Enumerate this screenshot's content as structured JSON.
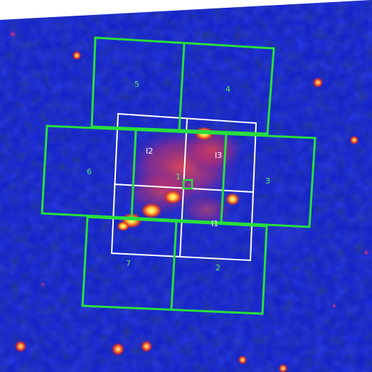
{
  "colors": {
    "green_frame": "#27e03c",
    "white_frame": "#ffffff",
    "green_label": "#58ee58",
    "white_label": "#ffffff",
    "sky_dark": "#05062b",
    "sky_blue": "#1524c8",
    "source_red": "#c83223",
    "source_yellow": "#ffe44a",
    "background": "#ffffff"
  },
  "green_labels": {
    "field_1": "1",
    "field_2": "2",
    "field_3": "3",
    "field_4": "4",
    "field_5": "5",
    "field_6": "6",
    "field_7": "7"
  },
  "white_labels": {
    "ccd_i2": "I2",
    "ccd_i3": "I3",
    "ccd_i1": "I1"
  }
}
